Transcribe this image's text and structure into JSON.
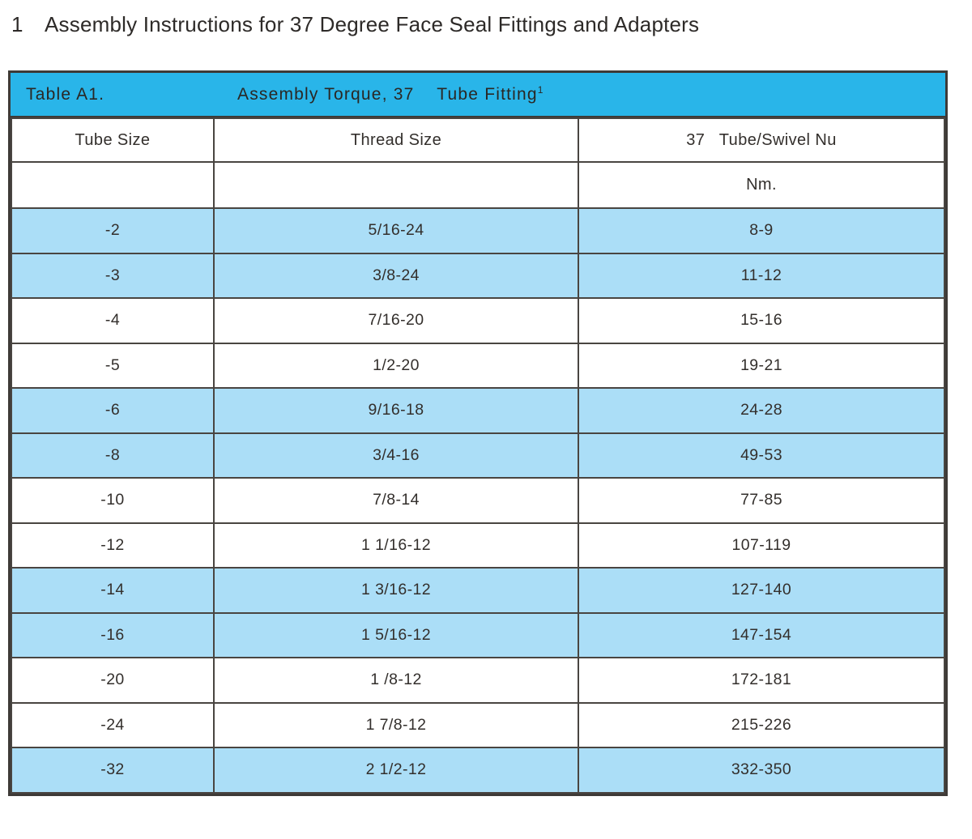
{
  "page": {
    "heading_number": "1",
    "heading_text": "Assembly Instructions for 37 Degree Face Seal Fittings and Adapters"
  },
  "table": {
    "title_label": "Table A1.",
    "title_text": "Assembly Torque, 37    Tube Fitting",
    "title_superscript": "1",
    "columns": [
      "Tube Size",
      "Thread Size",
      "37   Tube/Swivel Nu"
    ],
    "unit_row": [
      "",
      "",
      "Nm."
    ],
    "rows": [
      {
        "tube_size": "-2",
        "thread_size": "5/16-24",
        "torque": "8-9",
        "highlight": true
      },
      {
        "tube_size": "-3",
        "thread_size": "3/8-24",
        "torque": "11-12",
        "highlight": true
      },
      {
        "tube_size": "-4",
        "thread_size": "7/16-20",
        "torque": "15-16",
        "highlight": false
      },
      {
        "tube_size": "-5",
        "thread_size": "1/2-20",
        "torque": "19-21",
        "highlight": false
      },
      {
        "tube_size": "-6",
        "thread_size": "9/16-18",
        "torque": "24-28",
        "highlight": true
      },
      {
        "tube_size": "-8",
        "thread_size": "3/4-16",
        "torque": "49-53",
        "highlight": true
      },
      {
        "tube_size": "-10",
        "thread_size": "7/8-14",
        "torque": "77-85",
        "highlight": false
      },
      {
        "tube_size": "-12",
        "thread_size": "1 1/16-12",
        "torque": "107-119",
        "highlight": false
      },
      {
        "tube_size": "-14",
        "thread_size": "1 3/16-12",
        "torque": "127-140",
        "highlight": true
      },
      {
        "tube_size": "-16",
        "thread_size": "1 5/16-12",
        "torque": "147-154",
        "highlight": true
      },
      {
        "tube_size": "-20",
        "thread_size": "1 /8-12",
        "torque": "172-181",
        "highlight": false
      },
      {
        "tube_size": "-24",
        "thread_size": "1 7/8-12",
        "torque": "215-226",
        "highlight": false
      },
      {
        "tube_size": "-32",
        "thread_size": "2 1/2-12",
        "torque": "332-350",
        "highlight": true
      }
    ]
  },
  "colors": {
    "title_bar": "#29b5e9",
    "row_highlight": "#abdef7",
    "border": "#494541",
    "text": "#332f2c"
  }
}
